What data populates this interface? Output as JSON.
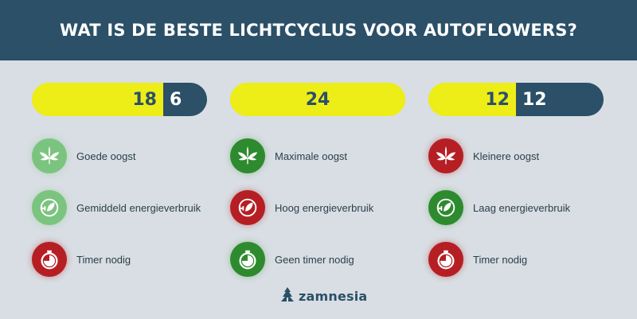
{
  "header": {
    "title": "WAT IS DE BESTE LICHTCYCLUS VOOR AUTOFLOWERS?"
  },
  "colors": {
    "header_bg": "#2b5068",
    "light_bar": "#eded18",
    "dark_bar": "#2b5068",
    "good": "#2e8a2e",
    "medium": "#7bc47f",
    "bad": "#b51f24"
  },
  "columns": [
    {
      "light_hours": "18",
      "dark_hours": "6",
      "light_fraction": 0.75,
      "items": [
        {
          "label": "Goede oogst",
          "icon": "cannabis-leaf-icon",
          "status": "lightgreen"
        },
        {
          "label": "Gemiddeld energieverbruik",
          "icon": "energy-plug-leaf-icon",
          "status": "lightgreen"
        },
        {
          "label": "Timer nodig",
          "icon": "stopwatch-icon",
          "status": "red"
        }
      ]
    },
    {
      "light_hours": "24",
      "dark_hours": "",
      "light_fraction": 1.0,
      "items": [
        {
          "label": "Maximale oogst",
          "icon": "cannabis-leaf-icon",
          "status": "green"
        },
        {
          "label": "Hoog energieverbruik",
          "icon": "energy-plug-leaf-icon",
          "status": "red"
        },
        {
          "label": "Geen timer nodig",
          "icon": "stopwatch-icon",
          "status": "green"
        }
      ]
    },
    {
      "light_hours": "12",
      "dark_hours": "12",
      "light_fraction": 0.5,
      "items": [
        {
          "label": "Kleinere oogst",
          "icon": "cannabis-leaf-icon",
          "status": "red"
        },
        {
          "label": "Laag energieverbruik",
          "icon": "energy-plug-leaf-icon",
          "status": "green"
        },
        {
          "label": "Timer nodig",
          "icon": "stopwatch-icon",
          "status": "red"
        }
      ]
    }
  ],
  "footer": {
    "logo_text": "zamnesia",
    "logo_icon": "zamnesia-logo-icon"
  }
}
